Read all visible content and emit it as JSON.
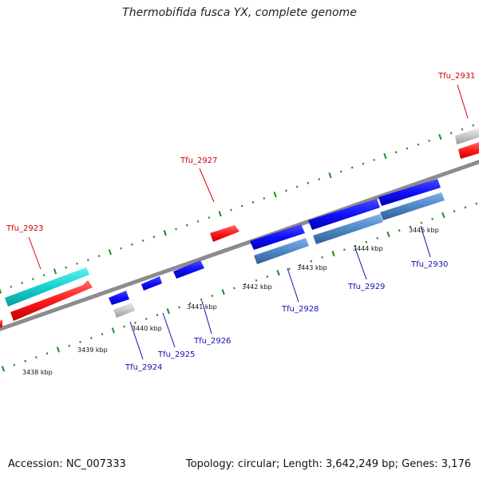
{
  "title": "Thermobifida fusca YX, complete genome",
  "accession_text": "Accession: NC_007333",
  "summary_text": "Topology: circular; Length: 3,642,249 bp; Genes: 3,176",
  "colors": {
    "backbone": "#8c8c8c",
    "tick": "#1f8a1f",
    "label_red": "#d00000",
    "label_blue": "#1010aa",
    "gene_red": "#ff1a1a",
    "gene_blue": "#1010ff",
    "gene_cyan": "#14d2d2",
    "gene_steel": "#4f86c6",
    "gene_gray": "#c8c8c8"
  },
  "scale_labels": [
    "3438 kbp",
    "3439 kbp",
    "3440 kbp",
    "3441 kbp",
    "3442 kbp",
    "3443 kbp",
    "3444 kbp",
    "3445 kbp"
  ],
  "gene_labels": {
    "top": [
      "Tfu_2923",
      "Tfu_2927",
      "Tfu_2931"
    ],
    "bottom": [
      "Tfu_2924",
      "Tfu_2925",
      "Tfu_2926",
      "Tfu_2928",
      "Tfu_2929",
      "Tfu_2930"
    ]
  }
}
